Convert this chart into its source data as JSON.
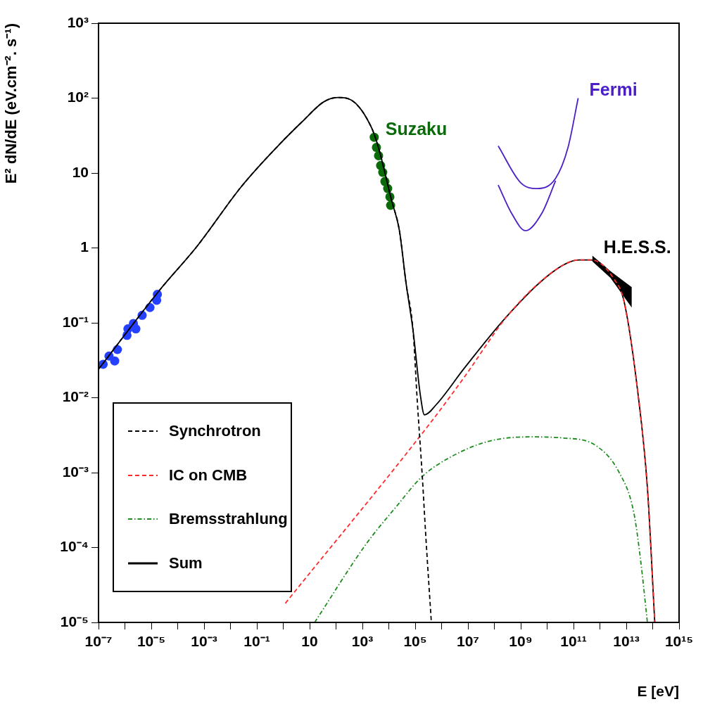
{
  "chart_data": {
    "type": "line",
    "xlabel": "E [eV]",
    "ylabel": "E² dN/dE (eV.cm⁻². s⁻¹)",
    "log": "xy",
    "grid": false,
    "legend": "bottom left",
    "xlim": [
      1e-07,
      1000000000000000.0
    ],
    "ylim": [
      1e-05,
      1000
    ],
    "xticks": [
      {
        "value": 1e-07,
        "label": "10⁻⁷"
      },
      {
        "value": 1e-06,
        "label": null
      },
      {
        "value": 1e-05,
        "label": "10⁻⁵"
      },
      {
        "value": 0.0001,
        "label": null
      },
      {
        "value": 0.001,
        "label": "10⁻³"
      },
      {
        "value": 0.01,
        "label": null
      },
      {
        "value": 0.1,
        "label": "10⁻¹"
      },
      {
        "value": 1,
        "label": null
      },
      10,
      {
        "value": 100,
        "label": null
      },
      {
        "value": 1000,
        "label": "10³"
      },
      {
        "value": 10000.0,
        "label": null
      },
      {
        "value": 100000.0,
        "label": "10⁵"
      },
      {
        "value": 1000000.0,
        "label": null
      },
      {
        "value": 10000000.0,
        "label": "10⁷"
      },
      {
        "value": 100000000.0,
        "label": null
      },
      {
        "value": 1000000000.0,
        "label": "10⁹"
      },
      {
        "value": 10000000000.0,
        "label": null
      },
      {
        "value": 100000000000.0,
        "label": "10¹¹"
      },
      {
        "value": 1000000000000.0,
        "label": null
      },
      {
        "value": 10000000000000.0,
        "label": "10¹³"
      },
      {
        "value": 100000000000000.0,
        "label": null
      },
      {
        "value": 1000000000000000.0,
        "label": "10¹⁵"
      }
    ],
    "yticks": [
      {
        "value": 1e-05,
        "label": "10⁻⁵"
      },
      {
        "value": 0.0001,
        "label": "10⁻⁴"
      },
      {
        "value": 0.001,
        "label": "10⁻³"
      },
      {
        "value": 0.01,
        "label": "10⁻²"
      },
      {
        "value": 0.1,
        "label": "10⁻¹"
      },
      1,
      10,
      {
        "value": 100,
        "label": "10²"
      },
      {
        "value": 1000,
        "label": "10³"
      }
    ],
    "series": [
      {
        "name": "Synchrotron",
        "line_style": "dashed",
        "color": "#000000",
        "x": [
          1e-07,
          2.1e-05,
          0.00054,
          0.026,
          0.56,
          5.4,
          34,
          117,
          400,
          2100,
          3900,
          13000,
          25000,
          45000,
          83000,
          120000,
          186000,
          250000,
          410000
        ],
        "values": [
          0.024,
          0.275,
          1.05,
          6.6,
          22,
          49,
          89,
          102,
          93,
          42,
          23,
          4.2,
          1.74,
          0.34,
          0.079,
          0.009,
          0.00089,
          0.00015,
          1e-05
        ]
      },
      {
        "name": "IC on CMB",
        "line_style": "dashed",
        "color": "#ff2a2a",
        "x": [
          1.2,
          410000,
          7400000.0,
          350000000.0,
          21000000000.0,
          160000000000.0,
          470000000000.0,
          3500000000000.0,
          8300000000000.0,
          28000000000000.0,
          63000000000000.0,
          120000000000000.0
        ],
        "values": [
          1.8e-05,
          0.0048,
          0.019,
          0.13,
          0.51,
          0.69,
          0.69,
          0.38,
          0.19,
          0.011,
          0.00063,
          1e-05
        ]
      },
      {
        "name": "Bremsstrahlung",
        "line_style": "dotted",
        "color": "#1e8c1e",
        "x": [
          15.5,
          1350,
          19000,
          186000,
          2100000.0,
          56000000.0,
          2200000000.0,
          40000000000.0,
          700000000000.0,
          5400000000000.0,
          19000000000000.0,
          34000000000000.0,
          63000000000000.0
        ],
        "values": [
          1e-05,
          0.00011,
          0.00035,
          0.00089,
          0.0016,
          0.0026,
          0.003,
          0.0029,
          0.0023,
          0.001,
          0.0003,
          7.3e-05,
          1e-05
        ]
      },
      {
        "name": "Sum",
        "line_style": "solid",
        "color": "#000000",
        "x": [
          1e-07,
          2.1e-05,
          0.00054,
          0.026,
          0.56,
          5.4,
          34,
          117,
          400,
          2100,
          3900,
          13000,
          25000,
          45000,
          83000,
          155000,
          224000,
          630000,
          7400000.0,
          350000000.0,
          21000000000.0,
          160000000000.0,
          470000000000.0,
          3500000000000.0,
          8300000000000.0,
          28000000000000.0,
          63000000000000.0,
          120000000000000.0
        ],
        "values": [
          0.024,
          0.275,
          1.05,
          6.6,
          22,
          49,
          89,
          102,
          93,
          42,
          23,
          4.2,
          1.74,
          0.34,
          0.079,
          0.0112,
          0.0059,
          0.0081,
          0.025,
          0.13,
          0.51,
          0.69,
          0.69,
          0.38,
          0.19,
          0.011,
          0.00063,
          1e-05
        ]
      },
      {
        "type": "scatter",
        "marker": "circle",
        "color": "#2541ff",
        "x": [
          1.5e-07,
          2.5e-07,
          4.1e-07,
          5.2e-07,
          1.2e-06,
          1.3e-06,
          2.1e-06,
          2.6e-06,
          4.5e-06,
          8.9e-06,
          1.6e-05,
          1.7e-05
        ],
        "values": [
          0.028,
          0.036,
          0.031,
          0.044,
          0.068,
          0.083,
          0.098,
          0.083,
          0.126,
          0.16,
          0.2,
          0.24
        ]
      },
      {
        "name": "Suzaku",
        "type": "scatter",
        "marker": "circle",
        "color": "#0b6b0b",
        "x": [
          2800,
          3400,
          4100,
          4900,
          5900,
          7100,
          9100,
          11000,
          11700
        ],
        "values": [
          30,
          22,
          17,
          12.6,
          10.2,
          7.7,
          6.2,
          4.8,
          3.7
        ]
      },
      {
        "name": "Fermi",
        "color": "#4b1fc8",
        "x": [
          140000000.0,
          1000000000.0,
          4100000000.0,
          21000000000.0,
          62000000000.0,
          150000000000.0
        ],
        "values": [
          23,
          7.4,
          6.2,
          8.5,
          22,
          100
        ]
      },
      {
        "color": "#4b1fc8",
        "x": [
          140000000.0,
          450000000.0,
          1500000000.0,
          6300000000.0,
          21000000000.0
        ],
        "values": [
          6.9,
          2.9,
          1.7,
          2.9,
          7.9
        ]
      },
      {
        "name": "H.E.S.S.",
        "color": "#000000",
        "x": [
          520000000000.0,
          2500000000000.0,
          16000000000000.0
        ],
        "values": [
          null,
          null,
          null
        ],
        "lower": [
          0.66,
          0.4,
          0.16
        ],
        "upper": [
          0.79,
          0.49,
          0.3
        ]
      }
    ]
  }
}
